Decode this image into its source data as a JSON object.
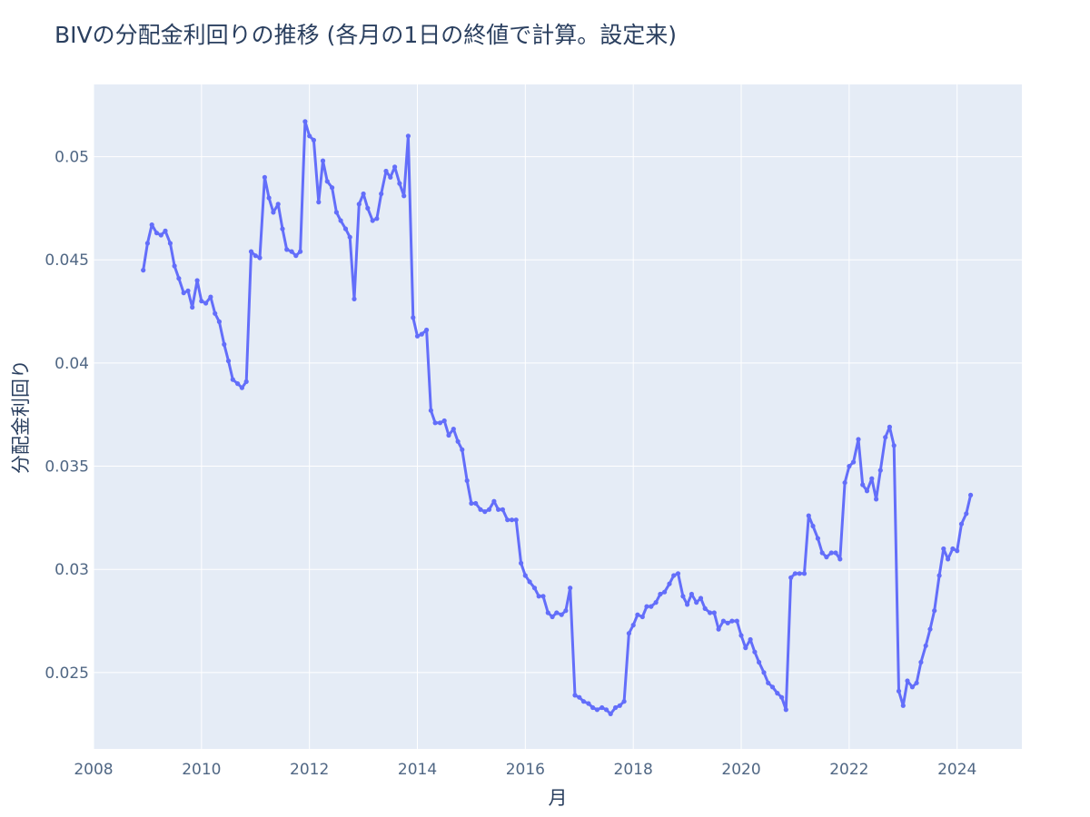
{
  "chart_data": {
    "type": "line",
    "title": "BIVの分配金利回りの推移 (各月の1日の終値で計算。設定来)",
    "xlabel": "月",
    "ylabel": "分配金利回り",
    "xlim": [
      2008.0,
      2025.2
    ],
    "ylim": [
      0.0213,
      0.0535
    ],
    "x_ticks": [
      2008,
      2010,
      2012,
      2014,
      2016,
      2018,
      2020,
      2022,
      2024
    ],
    "y_ticks": [
      0.025,
      0.03,
      0.035,
      0.04,
      0.045,
      0.05
    ],
    "x_tick_labels": [
      "2008",
      "2010",
      "2012",
      "2014",
      "2016",
      "2018",
      "2020",
      "2022",
      "2024"
    ],
    "y_tick_labels": [
      "0.025",
      "0.03",
      "0.035",
      "0.04",
      "0.045",
      "0.05"
    ],
    "grid": true,
    "series": [
      {
        "color": "#636efa",
        "points": [
          [
            2008.92,
            0.0445
          ],
          [
            2009.0,
            0.0458
          ],
          [
            2009.08,
            0.0467
          ],
          [
            2009.17,
            0.0463
          ],
          [
            2009.25,
            0.0462
          ],
          [
            2009.33,
            0.0464
          ],
          [
            2009.42,
            0.0458
          ],
          [
            2009.5,
            0.0447
          ],
          [
            2009.58,
            0.0441
          ],
          [
            2009.67,
            0.0434
          ],
          [
            2009.75,
            0.0435
          ],
          [
            2009.83,
            0.0427
          ],
          [
            2009.92,
            0.044
          ],
          [
            2010.0,
            0.043
          ],
          [
            2010.08,
            0.0429
          ],
          [
            2010.17,
            0.0432
          ],
          [
            2010.25,
            0.0424
          ],
          [
            2010.33,
            0.042
          ],
          [
            2010.42,
            0.0409
          ],
          [
            2010.5,
            0.0401
          ],
          [
            2010.58,
            0.0392
          ],
          [
            2010.67,
            0.039
          ],
          [
            2010.75,
            0.0388
          ],
          [
            2010.83,
            0.0391
          ],
          [
            2010.92,
            0.0454
          ],
          [
            2011.0,
            0.0452
          ],
          [
            2011.08,
            0.0451
          ],
          [
            2011.17,
            0.049
          ],
          [
            2011.25,
            0.048
          ],
          [
            2011.33,
            0.0473
          ],
          [
            2011.42,
            0.0477
          ],
          [
            2011.5,
            0.0465
          ],
          [
            2011.58,
            0.0455
          ],
          [
            2011.67,
            0.0454
          ],
          [
            2011.75,
            0.0452
          ],
          [
            2011.83,
            0.0454
          ],
          [
            2011.92,
            0.0517
          ],
          [
            2012.0,
            0.051
          ],
          [
            2012.08,
            0.0508
          ],
          [
            2012.17,
            0.0478
          ],
          [
            2012.25,
            0.0498
          ],
          [
            2012.33,
            0.0488
          ],
          [
            2012.42,
            0.0485
          ],
          [
            2012.5,
            0.0473
          ],
          [
            2012.58,
            0.0469
          ],
          [
            2012.67,
            0.0465
          ],
          [
            2012.75,
            0.0461
          ],
          [
            2012.83,
            0.0431
          ],
          [
            2012.92,
            0.0477
          ],
          [
            2013.0,
            0.0482
          ],
          [
            2013.08,
            0.0475
          ],
          [
            2013.17,
            0.0469
          ],
          [
            2013.25,
            0.047
          ],
          [
            2013.33,
            0.0482
          ],
          [
            2013.42,
            0.0493
          ],
          [
            2013.5,
            0.049
          ],
          [
            2013.58,
            0.0495
          ],
          [
            2013.67,
            0.0487
          ],
          [
            2013.75,
            0.0481
          ],
          [
            2013.83,
            0.051
          ],
          [
            2013.92,
            0.0422
          ],
          [
            2014.0,
            0.0413
          ],
          [
            2014.08,
            0.0414
          ],
          [
            2014.17,
            0.0416
          ],
          [
            2014.25,
            0.0377
          ],
          [
            2014.33,
            0.0371
          ],
          [
            2014.42,
            0.0371
          ],
          [
            2014.5,
            0.0372
          ],
          [
            2014.58,
            0.0365
          ],
          [
            2014.67,
            0.0368
          ],
          [
            2014.75,
            0.0362
          ],
          [
            2014.83,
            0.0358
          ],
          [
            2014.92,
            0.0343
          ],
          [
            2015.0,
            0.0332
          ],
          [
            2015.08,
            0.0332
          ],
          [
            2015.17,
            0.0329
          ],
          [
            2015.25,
            0.0328
          ],
          [
            2015.33,
            0.0329
          ],
          [
            2015.42,
            0.0333
          ],
          [
            2015.5,
            0.0329
          ],
          [
            2015.58,
            0.0329
          ],
          [
            2015.67,
            0.0324
          ],
          [
            2015.75,
            0.0324
          ],
          [
            2015.83,
            0.0324
          ],
          [
            2015.92,
            0.0303
          ],
          [
            2016.0,
            0.0297
          ],
          [
            2016.08,
            0.0294
          ],
          [
            2016.17,
            0.0291
          ],
          [
            2016.25,
            0.0287
          ],
          [
            2016.33,
            0.0287
          ],
          [
            2016.42,
            0.0279
          ],
          [
            2016.5,
            0.0277
          ],
          [
            2016.58,
            0.0279
          ],
          [
            2016.67,
            0.0278
          ],
          [
            2016.75,
            0.028
          ],
          [
            2016.83,
            0.0291
          ],
          [
            2016.92,
            0.0239
          ],
          [
            2017.0,
            0.0238
          ],
          [
            2017.08,
            0.0236
          ],
          [
            2017.17,
            0.0235
          ],
          [
            2017.25,
            0.0233
          ],
          [
            2017.33,
            0.0232
          ],
          [
            2017.42,
            0.0233
          ],
          [
            2017.5,
            0.0232
          ],
          [
            2017.58,
            0.023
          ],
          [
            2017.67,
            0.0233
          ],
          [
            2017.75,
            0.0234
          ],
          [
            2017.83,
            0.0236
          ],
          [
            2017.92,
            0.0269
          ],
          [
            2018.0,
            0.0273
          ],
          [
            2018.08,
            0.0278
          ],
          [
            2018.17,
            0.0277
          ],
          [
            2018.25,
            0.0282
          ],
          [
            2018.33,
            0.0282
          ],
          [
            2018.42,
            0.0284
          ],
          [
            2018.5,
            0.0288
          ],
          [
            2018.58,
            0.0289
          ],
          [
            2018.67,
            0.0293
          ],
          [
            2018.75,
            0.0297
          ],
          [
            2018.83,
            0.0298
          ],
          [
            2018.92,
            0.0287
          ],
          [
            2019.0,
            0.0283
          ],
          [
            2019.08,
            0.0288
          ],
          [
            2019.17,
            0.0284
          ],
          [
            2019.25,
            0.0286
          ],
          [
            2019.33,
            0.0281
          ],
          [
            2019.42,
            0.0279
          ],
          [
            2019.5,
            0.0279
          ],
          [
            2019.58,
            0.0271
          ],
          [
            2019.67,
            0.0275
          ],
          [
            2019.75,
            0.0274
          ],
          [
            2019.83,
            0.0275
          ],
          [
            2019.92,
            0.0275
          ],
          [
            2020.0,
            0.0268
          ],
          [
            2020.08,
            0.0262
          ],
          [
            2020.17,
            0.0266
          ],
          [
            2020.25,
            0.026
          ],
          [
            2020.33,
            0.0255
          ],
          [
            2020.42,
            0.025
          ],
          [
            2020.5,
            0.0245
          ],
          [
            2020.58,
            0.0243
          ],
          [
            2020.67,
            0.024
          ],
          [
            2020.75,
            0.0238
          ],
          [
            2020.83,
            0.0232
          ],
          [
            2020.92,
            0.0296
          ],
          [
            2021.0,
            0.0298
          ],
          [
            2021.08,
            0.0298
          ],
          [
            2021.17,
            0.0298
          ],
          [
            2021.25,
            0.0326
          ],
          [
            2021.33,
            0.0321
          ],
          [
            2021.42,
            0.0315
          ],
          [
            2021.5,
            0.0308
          ],
          [
            2021.58,
            0.0306
          ],
          [
            2021.67,
            0.0308
          ],
          [
            2021.75,
            0.0308
          ],
          [
            2021.83,
            0.0305
          ],
          [
            2021.92,
            0.0342
          ],
          [
            2022.0,
            0.035
          ],
          [
            2022.08,
            0.0352
          ],
          [
            2022.17,
            0.0363
          ],
          [
            2022.25,
            0.0341
          ],
          [
            2022.33,
            0.0338
          ],
          [
            2022.42,
            0.0344
          ],
          [
            2022.5,
            0.0334
          ],
          [
            2022.58,
            0.0348
          ],
          [
            2022.67,
            0.0364
          ],
          [
            2022.75,
            0.0369
          ],
          [
            2022.83,
            0.036
          ],
          [
            2022.92,
            0.0241
          ],
          [
            2023.0,
            0.0234
          ],
          [
            2023.08,
            0.0246
          ],
          [
            2023.17,
            0.0243
          ],
          [
            2023.25,
            0.0245
          ],
          [
            2023.33,
            0.0255
          ],
          [
            2023.42,
            0.0263
          ],
          [
            2023.5,
            0.0271
          ],
          [
            2023.58,
            0.028
          ],
          [
            2023.67,
            0.0297
          ],
          [
            2023.75,
            0.031
          ],
          [
            2023.83,
            0.0305
          ],
          [
            2023.92,
            0.031
          ],
          [
            2024.0,
            0.0309
          ],
          [
            2024.08,
            0.0322
          ],
          [
            2024.17,
            0.0327
          ],
          [
            2024.25,
            0.0336
          ]
        ]
      }
    ]
  }
}
